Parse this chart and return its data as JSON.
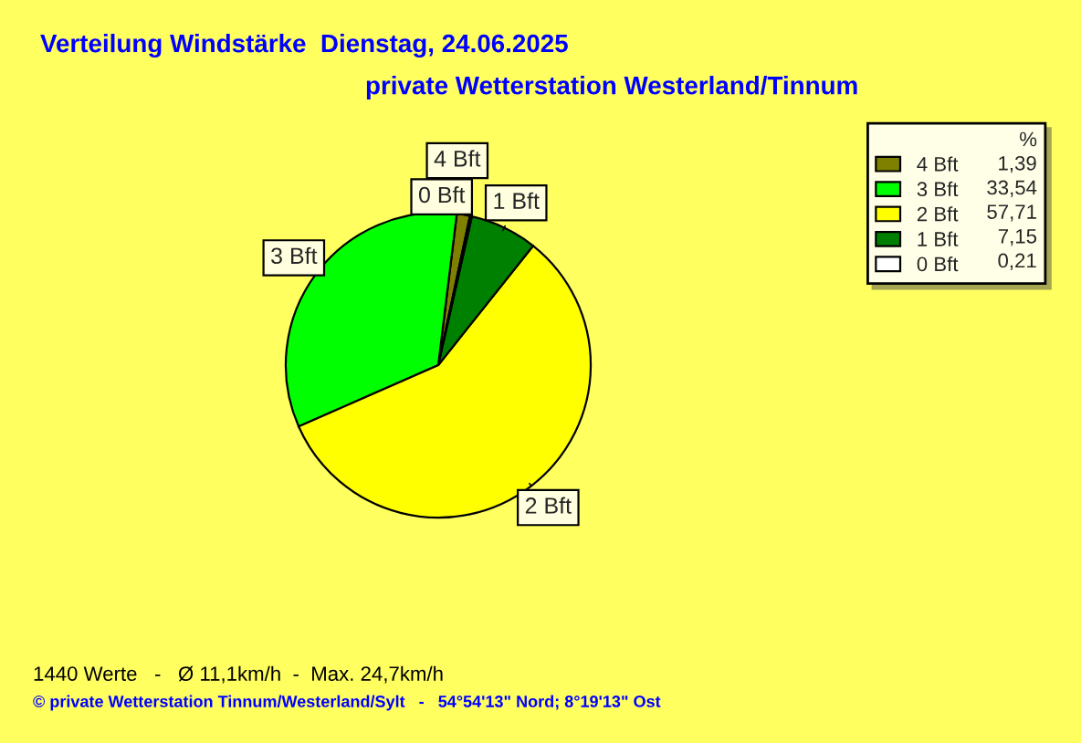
{
  "chart_data": {
    "type": "pie",
    "title": "Verteilung Windstärke  Dienstag, 24.06.2025",
    "subtitle": "private Wetterstation Westerland/Tinnum",
    "categories": [
      "4 Bft",
      "3 Bft",
      "2 Bft",
      "1 Bft",
      "0 Bft"
    ],
    "values": [
      1.39,
      33.54,
      57.71,
      7.15,
      0.21
    ],
    "value_labels": [
      "1,39",
      "33,54",
      "57,71",
      "7,15",
      "0,21"
    ],
    "colors": [
      "#808000",
      "#00ff00",
      "#ffff00",
      "#008000",
      "#ffffff"
    ],
    "legend_title": "%",
    "legend": "top right",
    "annotations": [
      "1440 Werte   -   Ø 11,1km/h  -  Max. 24,7km/h",
      "© private Wetterstation Tinnum/Westerland/Sylt   -   54°54'13\" Nord; 8°19'13\" Ost"
    ]
  }
}
